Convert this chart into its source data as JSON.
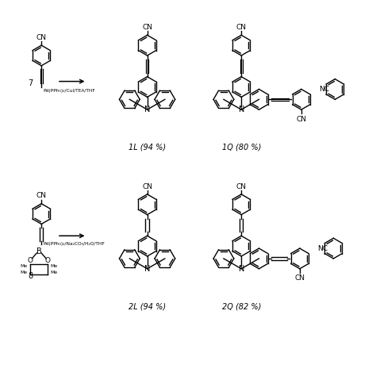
{
  "bg_color": "#ffffff",
  "lw": 1.0,
  "r": 13,
  "figsize": [
    4.74,
    4.74
  ],
  "dpi": 100,
  "labels": {
    "compound7": "7",
    "compound8": "8",
    "reagent1_line1": "Pd(PPh₃)₂/CuI/TEA/THF",
    "reagent2_line1": "Pd(PPh₃)₂/Na₂CO₃/H₂O/THF",
    "product1L": "1L (94 %)",
    "product1Q": "1Q (80 %)",
    "product2L": "2L (94 %)",
    "product2Q": "2Q (82 %)"
  }
}
